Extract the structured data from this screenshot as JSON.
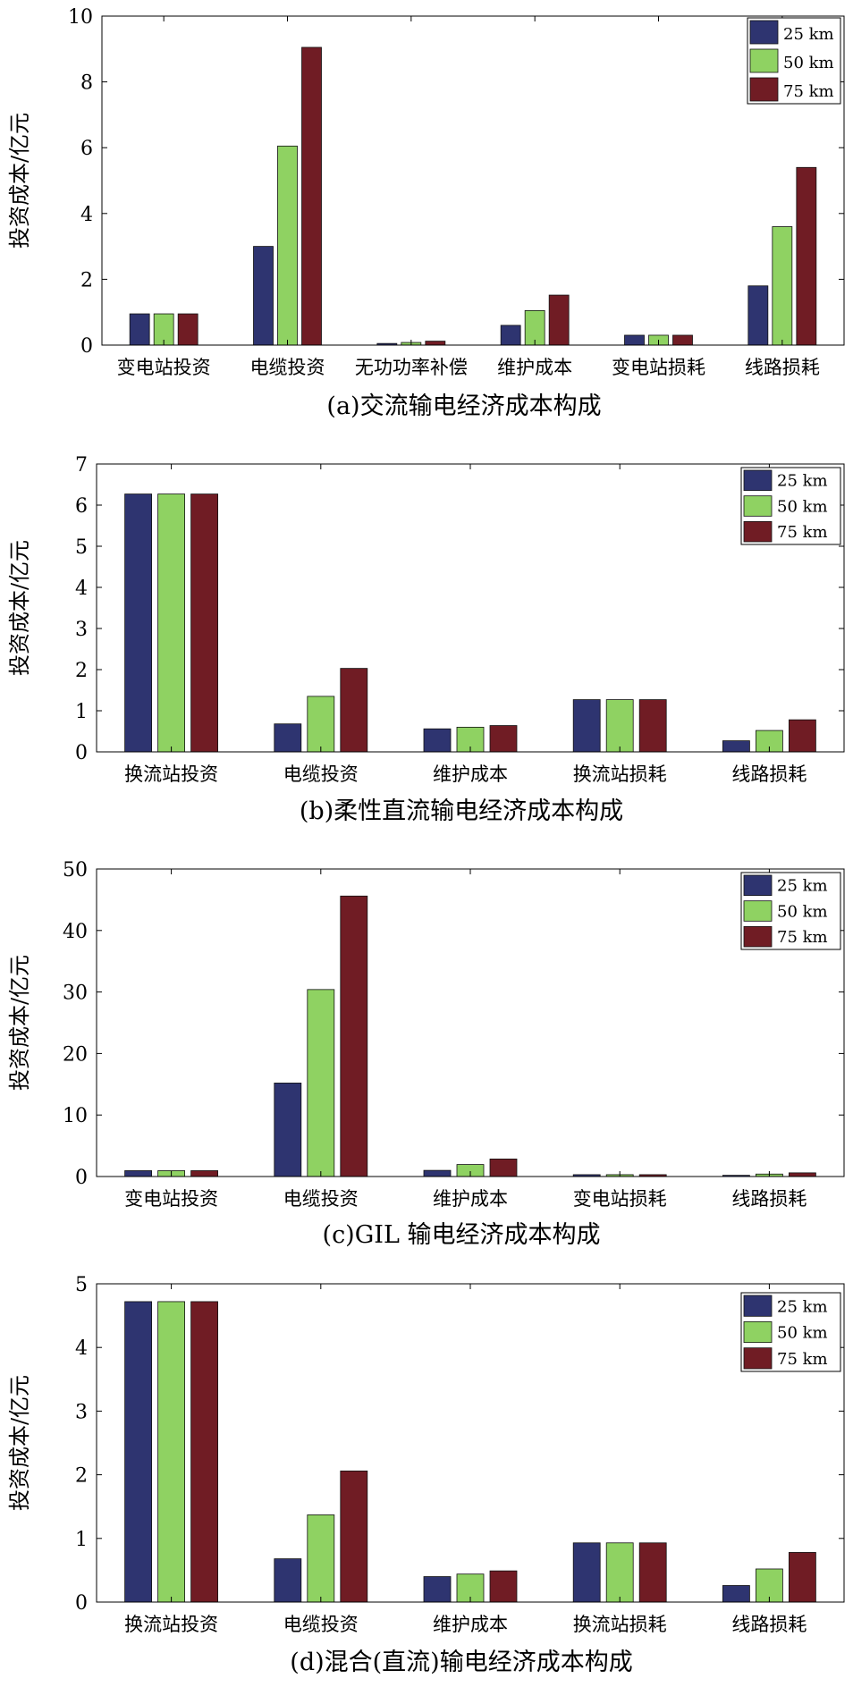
{
  "colors": {
    "km25": "#2e3470",
    "km50": "#8fd262",
    "km75": "#701c24"
  },
  "chart_data": [
    {
      "type": "bar",
      "title": "",
      "caption": "(a)交流输电经济成本构成",
      "ylabel": "投资成本/亿元",
      "ylim": [
        0,
        10
      ],
      "yticks": [
        0,
        2,
        4,
        6,
        8,
        10
      ],
      "legend": "top-right",
      "categories": [
        "变电站投资",
        "电缆投资",
        "无功功率补偿",
        "维护成本",
        "变电站损耗",
        "线路损耗"
      ],
      "series": [
        {
          "name": "25 km",
          "values": [
            0.95,
            3.0,
            0.05,
            0.6,
            0.3,
            1.8
          ]
        },
        {
          "name": "50 km",
          "values": [
            0.95,
            6.05,
            0.08,
            1.05,
            0.3,
            3.6
          ]
        },
        {
          "name": "75 km",
          "values": [
            0.95,
            9.05,
            0.12,
            1.52,
            0.3,
            5.4
          ]
        }
      ]
    },
    {
      "type": "bar",
      "title": "",
      "caption": "(b)柔性直流输电经济成本构成",
      "ylabel": "投资成本/亿元",
      "ylim": [
        0,
        7
      ],
      "yticks": [
        0,
        1,
        2,
        3,
        4,
        5,
        6,
        7
      ],
      "legend": "top-right",
      "categories": [
        "换流站投资",
        "电缆投资",
        "维护成本",
        "换流站损耗",
        "线路损耗"
      ],
      "series": [
        {
          "name": "25 km",
          "values": [
            6.27,
            0.68,
            0.56,
            1.27,
            0.27
          ]
        },
        {
          "name": "50 km",
          "values": [
            6.27,
            1.35,
            0.6,
            1.27,
            0.52
          ]
        },
        {
          "name": "75 km",
          "values": [
            6.27,
            2.03,
            0.64,
            1.27,
            0.78
          ]
        }
      ]
    },
    {
      "type": "bar",
      "title": "",
      "caption": "(c)GIL 输电经济成本构成",
      "ylabel": "投资成本/亿元",
      "ylim": [
        0,
        50
      ],
      "yticks": [
        0,
        10,
        20,
        30,
        40,
        50
      ],
      "legend": "top-right",
      "categories": [
        "变电站投资",
        "电缆投资",
        "维护成本",
        "变电站损耗",
        "线路损耗"
      ],
      "series": [
        {
          "name": "25 km",
          "values": [
            0.95,
            15.2,
            1.0,
            0.3,
            0.2
          ]
        },
        {
          "name": "50 km",
          "values": [
            0.95,
            30.4,
            1.95,
            0.3,
            0.4
          ]
        },
        {
          "name": "75 km",
          "values": [
            0.95,
            45.6,
            2.85,
            0.3,
            0.6
          ]
        }
      ]
    },
    {
      "type": "bar",
      "title": "",
      "caption": "(d)混合(直流)输电经济成本构成",
      "ylabel": "投资成本/亿元",
      "ylim": [
        0,
        5
      ],
      "yticks": [
        0,
        1,
        2,
        3,
        4,
        5
      ],
      "legend": "top-right",
      "categories": [
        "换流站投资",
        "电缆投资",
        "维护成本",
        "换流站损耗",
        "线路损耗"
      ],
      "series": [
        {
          "name": "25 km",
          "values": [
            4.72,
            0.68,
            0.4,
            0.93,
            0.26
          ]
        },
        {
          "name": "50 km",
          "values": [
            4.72,
            1.37,
            0.44,
            0.93,
            0.52
          ]
        },
        {
          "name": "75 km",
          "values": [
            4.72,
            2.06,
            0.49,
            0.93,
            0.78
          ]
        }
      ]
    }
  ]
}
